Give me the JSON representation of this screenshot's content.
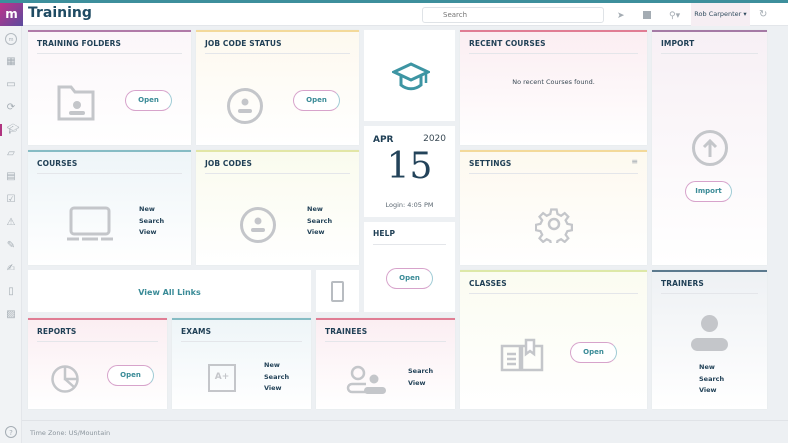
{
  "header": {
    "logo": "m",
    "title": "Training",
    "search_placeholder": "Search",
    "user": "Rob Carpenter ▾"
  },
  "colors": {
    "accent": "#3d8f9c",
    "brand": "#b0337f"
  },
  "sidebar": {
    "icons": [
      "home-icon",
      "dashboard-icon",
      "folder-icon",
      "refresh-icon",
      "training-cap-icon",
      "folder-open-icon",
      "calendar-icon",
      "clipboard-check-icon",
      "warning-icon",
      "edit-icon",
      "signature-icon",
      "document-icon",
      "notes-icon"
    ],
    "help": "?"
  },
  "cards": {
    "training_folders": {
      "title": "TRAINING FOLDERS",
      "button": "Open"
    },
    "job_code_status": {
      "title": "JOB CODE STATUS",
      "button": "Open"
    },
    "recent_courses": {
      "title": "RECENT COURSES",
      "empty": "No recent Courses found."
    },
    "import": {
      "title": "IMPORT",
      "button": "Import"
    },
    "courses": {
      "title": "COURSES",
      "links": [
        "New",
        "Search",
        "View"
      ]
    },
    "job_codes": {
      "title": "JOB CODES",
      "links": [
        "New",
        "Search",
        "View"
      ]
    },
    "date": {
      "month": "APR",
      "year": "2020",
      "day": "15",
      "login": "Login: 4:05 PM"
    },
    "help": {
      "title": "HELP",
      "button": "Open"
    },
    "settings": {
      "title": "SETTINGS"
    },
    "view_all_links": "View All Links",
    "classes": {
      "title": "CLASSES",
      "button": "Open"
    },
    "trainers": {
      "title": "TRAINERS",
      "links": [
        "New",
        "Search",
        "View"
      ]
    },
    "reports": {
      "title": "REPORTS",
      "button": "Open"
    },
    "exams": {
      "title": "EXAMS",
      "links": [
        "New",
        "Search",
        "View"
      ],
      "badge": "A+"
    },
    "trainees": {
      "title": "TRAINEES",
      "links": [
        "Search",
        "View"
      ]
    }
  },
  "footer": {
    "timezone": "Time Zone: US/Mountain"
  }
}
